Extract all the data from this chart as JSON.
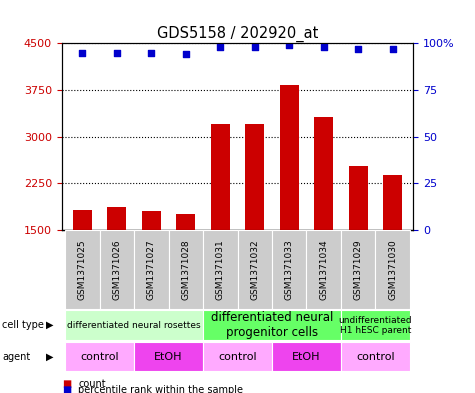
{
  "title": "GDS5158 / 202920_at",
  "samples": [
    "GSM1371025",
    "GSM1371026",
    "GSM1371027",
    "GSM1371028",
    "GSM1371031",
    "GSM1371032",
    "GSM1371033",
    "GSM1371034",
    "GSM1371029",
    "GSM1371030"
  ],
  "counts": [
    1820,
    1870,
    1800,
    1760,
    3210,
    3210,
    3830,
    3310,
    2520,
    2380
  ],
  "percentiles": [
    95.0,
    95.0,
    95.0,
    94.0,
    98.0,
    98.0,
    99.0,
    98.0,
    97.0,
    97.0
  ],
  "ylim_left": [
    1500,
    4500
  ],
  "ylim_right": [
    0,
    100
  ],
  "yticks_left": [
    1500,
    2250,
    3000,
    3750,
    4500
  ],
  "yticks_right": [
    0,
    25,
    50,
    75,
    100
  ],
  "bar_color": "#cc0000",
  "dot_color": "#0000cc",
  "cell_type_groups": [
    {
      "label": "differentiated neural rosettes",
      "start": 0,
      "end": 4,
      "color": "#ccffcc",
      "fontsize": 6.5
    },
    {
      "label": "differentiated neural\nprogenitor cells",
      "start": 4,
      "end": 8,
      "color": "#66ff66",
      "fontsize": 8.5
    },
    {
      "label": "undifferentiated\nH1 hESC parent",
      "start": 8,
      "end": 10,
      "color": "#66ff66",
      "fontsize": 6.5
    }
  ],
  "agent_groups": [
    {
      "label": "control",
      "start": 0,
      "end": 2,
      "color": "#ffaaff"
    },
    {
      "label": "EtOH",
      "start": 2,
      "end": 4,
      "color": "#ee44ee"
    },
    {
      "label": "control",
      "start": 4,
      "end": 6,
      "color": "#ffaaff"
    },
    {
      "label": "EtOH",
      "start": 6,
      "end": 8,
      "color": "#ee44ee"
    },
    {
      "label": "control",
      "start": 8,
      "end": 10,
      "color": "#ffaaff"
    }
  ],
  "left_label_color": "#cc0000",
  "right_label_color": "#0000cc",
  "bar_bottom": 1500
}
